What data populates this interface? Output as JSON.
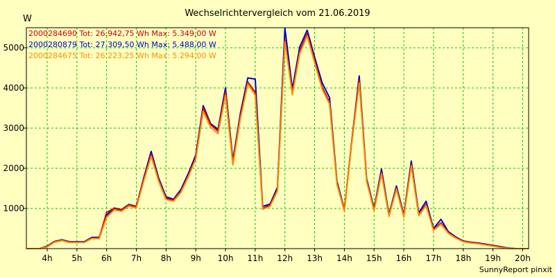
{
  "chart_data": {
    "type": "line",
    "title": "Wechselrichtervergleich vom 21.06.2019",
    "ylabel": "W",
    "xlabel": "",
    "x_unit": "hours",
    "xlim": [
      3.3,
      20.2
    ],
    "ylim": [
      0,
      5500
    ],
    "x_ticks": [
      4,
      5,
      6,
      7,
      8,
      9,
      10,
      11,
      12,
      13,
      14,
      15,
      16,
      17,
      18,
      19,
      20
    ],
    "x_tick_labels": [
      "4h",
      "5h",
      "6h",
      "7h",
      "8h",
      "9h",
      "10h",
      "11h",
      "12h",
      "13h",
      "14h",
      "15h",
      "16h",
      "17h",
      "18h",
      "19h",
      "20h"
    ],
    "y_ticks": [
      1000,
      2000,
      3000,
      4000,
      5000
    ],
    "y_tick_labels": [
      "1000",
      "2000",
      "3000",
      "4000",
      "5000"
    ],
    "grid": true,
    "legend_position": "top-left",
    "x": [
      3.3,
      3.5,
      3.75,
      4.0,
      4.25,
      4.5,
      4.75,
      5.0,
      5.25,
      5.5,
      5.75,
      6.0,
      6.25,
      6.5,
      6.75,
      7.0,
      7.25,
      7.5,
      7.75,
      8.0,
      8.25,
      8.5,
      8.75,
      9.0,
      9.25,
      9.5,
      9.75,
      10.0,
      10.25,
      10.5,
      10.75,
      11.0,
      11.25,
      11.5,
      11.75,
      12.0,
      12.25,
      12.5,
      12.75,
      13.0,
      13.25,
      13.5,
      13.75,
      14.0,
      14.25,
      14.5,
      14.75,
      15.0,
      15.25,
      15.5,
      15.75,
      16.0,
      16.25,
      16.5,
      16.75,
      17.0,
      17.25,
      17.5,
      17.75,
      18.0,
      18.25,
      18.5,
      18.75,
      19.0,
      19.25,
      19.5,
      19.75,
      20.0,
      20.2
    ],
    "series": [
      {
        "name": "2000284690 Tot: 26.942,75 Wh Max: 5.349,00 W",
        "color": "#d00000",
        "values": [
          0,
          0,
          0,
          50,
          170,
          210,
          160,
          160,
          160,
          260,
          260,
          900,
          1000,
          960,
          1090,
          1040,
          1720,
          2350,
          1720,
          1250,
          1210,
          1430,
          1820,
          2270,
          3500,
          3090,
          2920,
          3900,
          2150,
          3290,
          4150,
          3890,
          1000,
          1080,
          1470,
          5200,
          3880,
          4920,
          5349,
          4680,
          4020,
          3650,
          1630,
          960,
          2660,
          4200,
          1700,
          970,
          1900,
          830,
          1510,
          810,
          2100,
          850,
          1100,
          480,
          640,
          400,
          270,
          180,
          150,
          130,
          100,
          70,
          40,
          10,
          0,
          0,
          0
        ]
      },
      {
        "name": "2000280879 Tot: 27.309,50 Wh Max: 5.488,00 W",
        "color": "#0000c8",
        "values": [
          0,
          0,
          0,
          60,
          180,
          220,
          170,
          170,
          170,
          280,
          280,
          830,
          1010,
          970,
          1100,
          1050,
          1760,
          2420,
          1760,
          1290,
          1230,
          1470,
          1870,
          2330,
          3560,
          3110,
          2970,
          4000,
          2200,
          3360,
          4250,
          4220,
          1050,
          1110,
          1530,
          5488,
          3970,
          5020,
          5440,
          4760,
          4130,
          3760,
          1680,
          970,
          2680,
          4300,
          1740,
          1000,
          1980,
          850,
          1560,
          840,
          2180,
          890,
          1180,
          500,
          730,
          420,
          290,
          190,
          160,
          140,
          110,
          80,
          50,
          15,
          0,
          0,
          0
        ]
      },
      {
        "name": "2000284675 Tot: 26.223,25 Wh Max: 5.294,00 W",
        "color": "#ff8c00",
        "values": [
          0,
          0,
          0,
          40,
          160,
          200,
          150,
          150,
          150,
          250,
          250,
          780,
          960,
          930,
          1060,
          1010,
          1680,
          2300,
          1680,
          1220,
          1180,
          1400,
          1790,
          2230,
          3420,
          3020,
          2860,
          3820,
          2080,
          3230,
          4100,
          3820,
          980,
          1050,
          1440,
          5150,
          3830,
          4860,
          5294,
          4620,
          3970,
          3600,
          1600,
          930,
          2620,
          4120,
          1670,
          940,
          1860,
          800,
          1480,
          780,
          2060,
          820,
          1070,
          450,
          610,
          380,
          260,
          170,
          140,
          120,
          90,
          60,
          30,
          5,
          0,
          0,
          0
        ]
      }
    ]
  },
  "footer": "SunnyReport pinxit",
  "colors": {
    "background": "#ffffc0",
    "grid": "#00c800",
    "axis": "#000000"
  }
}
